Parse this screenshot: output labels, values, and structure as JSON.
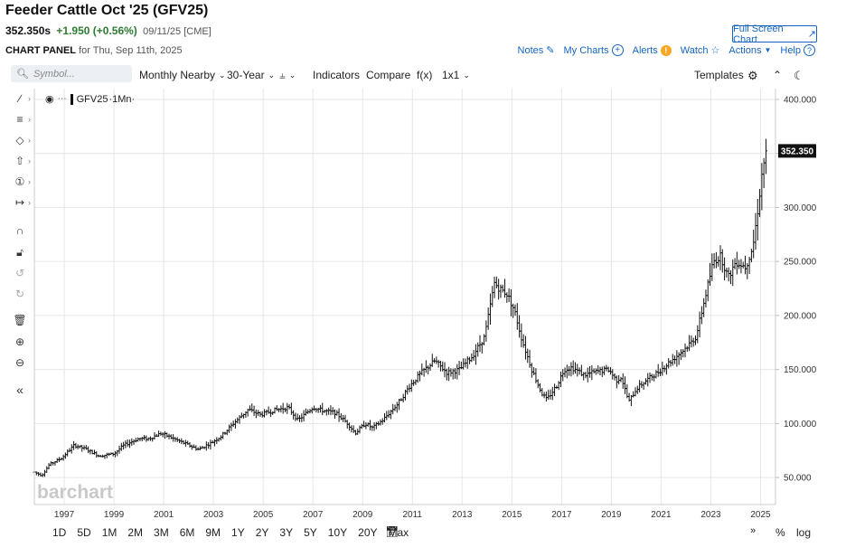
{
  "header": {
    "title": "Feeder Cattle Oct '25 (GFV25)",
    "price": "352.350s",
    "change": "+1.950 (+0.56%)",
    "date": "09/11/25 [CME]",
    "full_screen": "Full Screen Chart",
    "panel_label": "CHART PANEL",
    "panel_for": "for Thu, Sep 11th, 2025"
  },
  "toplinks": {
    "notes": "Notes",
    "my_charts": "My Charts",
    "alerts": "Alerts",
    "watch": "Watch",
    "actions": "Actions",
    "help": "Help"
  },
  "toolbar": {
    "symbol_placeholder": "Symbol...",
    "period": "Monthly Nearby",
    "range": "30-Year",
    "indicators": "Indicators",
    "compare": "Compare",
    "fx": "f(x)",
    "layout": "1x1",
    "templates": "Templates"
  },
  "legend": {
    "symbol": "GFV25",
    "interval": "·1Mn·"
  },
  "watermark": "barchart",
  "last_price_label": "352.350",
  "periods": [
    "1D",
    "5D",
    "1M",
    "2M",
    "3M",
    "6M",
    "9M",
    "1Y",
    "2Y",
    "3Y",
    "5Y",
    "10Y",
    "20Y",
    "Max"
  ],
  "bottom_right": {
    "pct": "%",
    "log": "log"
  },
  "icons": [
    "search-icon",
    "trendline-icon",
    "fib-icon",
    "shape-icon",
    "arrow-icon",
    "annotation-icon",
    "measure-icon",
    "magnet-icon",
    "lock-icon",
    "undo-icon",
    "redo-icon",
    "trash-icon",
    "zoom-in-icon",
    "zoom-out-icon",
    "collapse-icon",
    "gear-icon",
    "dark-mode-icon",
    "calendar-icon"
  ],
  "colors": {
    "accent": "#1565c0",
    "up": "#2e7d32",
    "bars": "#111111",
    "grid": "#e6e6e6",
    "price_tag": "#111111"
  },
  "chart_data": {
    "type": "ohlc",
    "xlim": [
      1996.3,
      2026.1
    ],
    "ylim": [
      25,
      410
    ],
    "x_ticks": [
      "1997",
      "1999",
      "2001",
      "2003",
      "2005",
      "2007",
      "2009",
      "2011",
      "2013",
      "2015",
      "2017",
      "2019",
      "2021",
      "2023",
      "2025"
    ],
    "y_ticks": [
      "400.000",
      "350.000",
      "300.000",
      "250.000",
      "200.000",
      "150.000",
      "100.000",
      "50.000"
    ],
    "last_price": 352.35,
    "anchors": [
      [
        1996.3,
        55
      ],
      [
        1996.6,
        52
      ],
      [
        1996.9,
        62
      ],
      [
        1997.4,
        68
      ],
      [
        1997.9,
        80
      ],
      [
        1998.4,
        76
      ],
      [
        1998.9,
        70
      ],
      [
        1999.5,
        72
      ],
      [
        1999.9,
        80
      ],
      [
        2000.5,
        86
      ],
      [
        2000.9,
        86
      ],
      [
        2001.4,
        91
      ],
      [
        2001.9,
        86
      ],
      [
        2002.5,
        80
      ],
      [
        2002.9,
        76
      ],
      [
        2003.4,
        82
      ],
      [
        2003.8,
        88
      ],
      [
        2004.3,
        100
      ],
      [
        2004.9,
        113
      ],
      [
        2005.4,
        108
      ],
      [
        2005.9,
        112
      ],
      [
        2006.5,
        115
      ],
      [
        2006.9,
        103
      ],
      [
        2007.5,
        115
      ],
      [
        2007.9,
        112
      ],
      [
        2008.4,
        110
      ],
      [
        2008.9,
        100
      ],
      [
        2009.2,
        91
      ],
      [
        2009.6,
        100
      ],
      [
        2009.9,
        96
      ],
      [
        2010.3,
        103
      ],
      [
        2010.9,
        118
      ],
      [
        2011.4,
        135
      ],
      [
        2011.9,
        148
      ],
      [
        2012.4,
        158
      ],
      [
        2012.9,
        147
      ],
      [
        2013.4,
        150
      ],
      [
        2013.9,
        162
      ],
      [
        2014.4,
        180
      ],
      [
        2014.8,
        230
      ],
      [
        2015.0,
        225
      ],
      [
        2015.3,
        220
      ],
      [
        2015.6,
        205
      ],
      [
        2015.9,
        178
      ],
      [
        2016.3,
        150
      ],
      [
        2016.7,
        128
      ],
      [
        2016.9,
        122
      ],
      [
        2017.3,
        135
      ],
      [
        2017.6,
        150
      ],
      [
        2017.9,
        152
      ],
      [
        2018.4,
        145
      ],
      [
        2018.9,
        148
      ],
      [
        2019.4,
        150
      ],
      [
        2019.7,
        140
      ],
      [
        2019.9,
        143
      ],
      [
        2020.2,
        120
      ],
      [
        2020.5,
        132
      ],
      [
        2020.9,
        140
      ],
      [
        2021.4,
        148
      ],
      [
        2021.9,
        158
      ],
      [
        2022.4,
        168
      ],
      [
        2022.9,
        180
      ],
      [
        2023.2,
        210
      ],
      [
        2023.6,
        250
      ],
      [
        2023.9,
        255
      ],
      [
        2024.2,
        235
      ],
      [
        2024.5,
        250
      ],
      [
        2024.9,
        245
      ],
      [
        2025.2,
        265
      ],
      [
        2025.4,
        300
      ],
      [
        2025.55,
        330
      ],
      [
        2025.7,
        352
      ]
    ]
  }
}
